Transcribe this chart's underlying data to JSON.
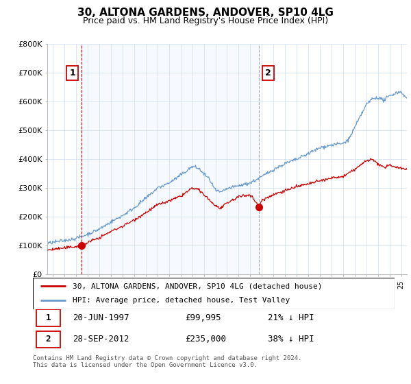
{
  "title": "30, ALTONA GARDENS, ANDOVER, SP10 4LG",
  "subtitle": "Price paid vs. HM Land Registry's House Price Index (HPI)",
  "ylabel_ticks": [
    "£0",
    "£100K",
    "£200K",
    "£300K",
    "£400K",
    "£500K",
    "£600K",
    "£700K",
    "£800K"
  ],
  "ytick_values": [
    0,
    100000,
    200000,
    300000,
    400000,
    500000,
    600000,
    700000,
    800000
  ],
  "ylim": [
    0,
    800000
  ],
  "xlim_start": 1994.5,
  "xlim_end": 2025.5,
  "sale1_x": 1997.47,
  "sale1_y": 99995,
  "sale1_label": "1",
  "sale1_date": "20-JUN-1997",
  "sale1_price": "£99,995",
  "sale1_hpi": "21% ↓ HPI",
  "sale2_x": 2012.75,
  "sale2_y": 235000,
  "sale2_label": "2",
  "sale2_date": "28-SEP-2012",
  "sale2_price": "£235,000",
  "sale2_hpi": "38% ↓ HPI",
  "red_color": "#cc0000",
  "blue_color": "#6699cc",
  "blue_fill_color": "#ddeeff",
  "sale1_vline_color": "#cc0000",
  "sale2_vline_color": "#aaaaaa",
  "legend_line1": "30, ALTONA GARDENS, ANDOVER, SP10 4LG (detached house)",
  "legend_line2": "HPI: Average price, detached house, Test Valley",
  "footnote": "Contains HM Land Registry data © Crown copyright and database right 2024.\nThis data is licensed under the Open Government Licence v3.0.",
  "background_color": "#ffffff",
  "grid_color": "#ccddee"
}
